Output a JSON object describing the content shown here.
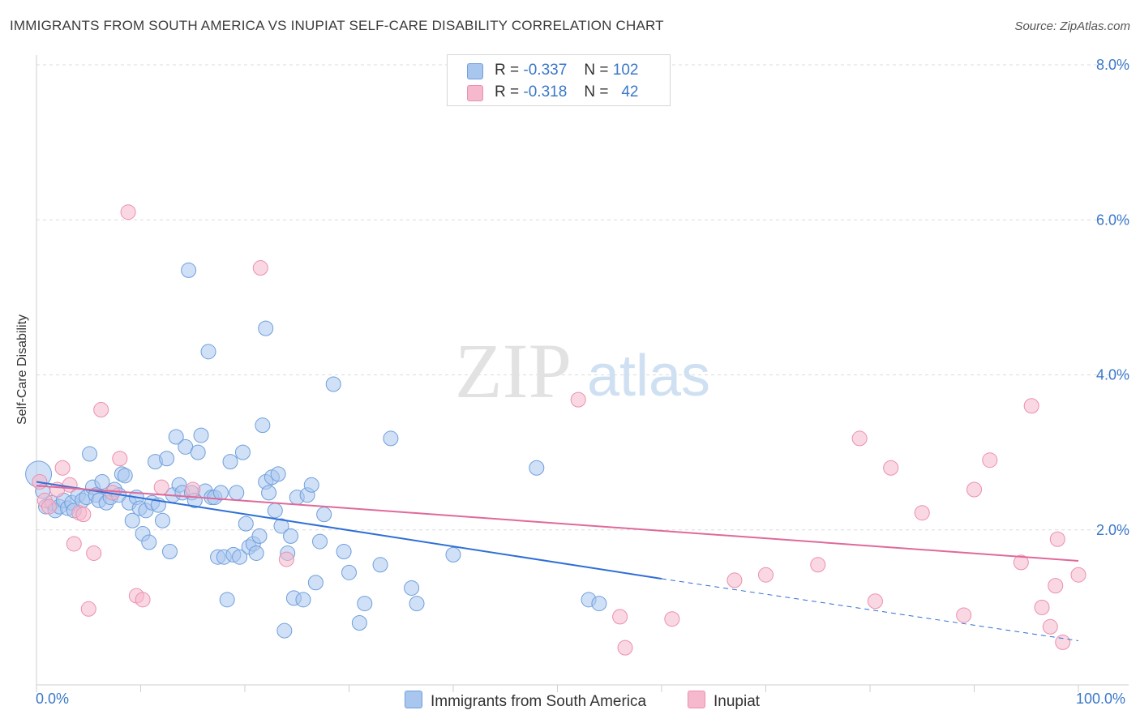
{
  "title": "IMMIGRANTS FROM SOUTH AMERICA VS INUPIAT SELF-CARE DISABILITY CORRELATION CHART",
  "source": "Source: ZipAtlas.com",
  "watermark": {
    "zip": "ZIP",
    "atlas": "atlas"
  },
  "colors": {
    "blue_fill": "#a9c6ee",
    "blue_stroke": "#6f9fdc",
    "blue_line": "#2f6fd6",
    "pink_fill": "#f5b8cc",
    "pink_stroke": "#ec8fad",
    "pink_line": "#e0699a",
    "axis_text": "#3a78c9",
    "grid": "#dcdcdc"
  },
  "legend": {
    "blue": {
      "r_label": "R =",
      "r_value": "-0.337",
      "n_label": "N =",
      "n_value": "102"
    },
    "pink": {
      "r_label": "R =",
      "r_value": "-0.318",
      "n_label": "N =",
      "n_value": "42"
    }
  },
  "bottom_legend": {
    "blue": "Immigrants from South America",
    "pink": "Inupiat"
  },
  "chart_data": {
    "type": "scatter",
    "title": "IMMIGRANTS FROM SOUTH AMERICA VS INUPIAT SELF-CARE DISABILITY CORRELATION CHART",
    "xlabel": "",
    "ylabel": "Self-Care Disability",
    "xlim": [
      0,
      100
    ],
    "ylim": [
      0,
      8.0
    ],
    "x_tick_labels": [
      "0.0%",
      "100.0%"
    ],
    "y_ticks": [
      2.0,
      4.0,
      6.0,
      8.0
    ],
    "y_tick_labels": [
      "2.0%",
      "4.0%",
      "6.0%",
      "8.0%"
    ],
    "grid": true,
    "series": [
      {
        "name": "Immigrants from South America",
        "color": "#a9c6ee",
        "trend": {
          "x": [
            0,
            60
          ],
          "y": [
            2.62,
            1.37
          ],
          "dashed_to": [
            100,
            0.57
          ]
        },
        "points": [
          [
            0.2,
            2.72
          ],
          [
            0.6,
            2.5
          ],
          [
            0.9,
            2.3
          ],
          [
            1.5,
            2.35
          ],
          [
            1.8,
            2.25
          ],
          [
            2.2,
            2.3
          ],
          [
            2.6,
            2.38
          ],
          [
            3.0,
            2.28
          ],
          [
            3.4,
            2.35
          ],
          [
            3.6,
            2.25
          ],
          [
            4.0,
            2.45
          ],
          [
            4.4,
            2.38
          ],
          [
            4.8,
            2.42
          ],
          [
            5.1,
            2.98
          ],
          [
            5.4,
            2.55
          ],
          [
            5.7,
            2.45
          ],
          [
            6.0,
            2.38
          ],
          [
            6.3,
            2.62
          ],
          [
            6.7,
            2.35
          ],
          [
            7.1,
            2.42
          ],
          [
            7.5,
            2.52
          ],
          [
            7.9,
            2.45
          ],
          [
            8.2,
            2.72
          ],
          [
            8.5,
            2.7
          ],
          [
            8.9,
            2.35
          ],
          [
            9.2,
            2.12
          ],
          [
            9.6,
            2.42
          ],
          [
            9.9,
            2.28
          ],
          [
            10.2,
            1.95
          ],
          [
            10.5,
            2.25
          ],
          [
            10.8,
            1.84
          ],
          [
            11.1,
            2.35
          ],
          [
            11.4,
            2.88
          ],
          [
            11.7,
            2.32
          ],
          [
            12.1,
            2.12
          ],
          [
            12.5,
            2.92
          ],
          [
            12.8,
            1.72
          ],
          [
            13.1,
            2.45
          ],
          [
            13.4,
            3.2
          ],
          [
            13.7,
            2.58
          ],
          [
            14.0,
            2.48
          ],
          [
            14.3,
            3.07
          ],
          [
            14.6,
            5.35
          ],
          [
            14.9,
            2.48
          ],
          [
            15.2,
            2.38
          ],
          [
            15.5,
            3.0
          ],
          [
            15.8,
            3.22
          ],
          [
            16.2,
            2.5
          ],
          [
            16.5,
            4.3
          ],
          [
            16.8,
            2.42
          ],
          [
            17.1,
            2.42
          ],
          [
            17.4,
            1.65
          ],
          [
            17.7,
            2.48
          ],
          [
            18.0,
            1.65
          ],
          [
            18.3,
            1.1
          ],
          [
            18.6,
            2.88
          ],
          [
            18.9,
            1.68
          ],
          [
            19.2,
            2.48
          ],
          [
            19.5,
            1.65
          ],
          [
            19.8,
            3.0
          ],
          [
            20.1,
            2.08
          ],
          [
            20.4,
            1.78
          ],
          [
            20.8,
            1.82
          ],
          [
            21.1,
            1.7
          ],
          [
            21.4,
            1.92
          ],
          [
            21.7,
            3.35
          ],
          [
            22.0,
            2.62
          ],
          [
            22.0,
            4.6
          ],
          [
            22.3,
            2.48
          ],
          [
            22.6,
            2.68
          ],
          [
            22.9,
            2.25
          ],
          [
            23.2,
            2.72
          ],
          [
            23.5,
            2.05
          ],
          [
            23.8,
            0.7
          ],
          [
            24.1,
            1.7
          ],
          [
            24.4,
            1.92
          ],
          [
            24.7,
            1.12
          ],
          [
            25.0,
            2.42
          ],
          [
            25.6,
            1.1
          ],
          [
            26.0,
            2.45
          ],
          [
            26.4,
            2.58
          ],
          [
            26.8,
            1.32
          ],
          [
            27.2,
            1.85
          ],
          [
            27.6,
            2.2
          ],
          [
            28.5,
            3.88
          ],
          [
            29.5,
            1.72
          ],
          [
            30.0,
            1.45
          ],
          [
            31.0,
            0.8
          ],
          [
            31.5,
            1.05
          ],
          [
            33.0,
            1.55
          ],
          [
            34.0,
            3.18
          ],
          [
            36.0,
            1.25
          ],
          [
            36.5,
            1.05
          ],
          [
            40.0,
            1.68
          ],
          [
            48.0,
            2.8
          ],
          [
            53.0,
            1.1
          ],
          [
            54.0,
            1.05
          ]
        ]
      },
      {
        "name": "Inupiat",
        "color": "#f5b8cc",
        "trend": {
          "x": [
            0,
            100
          ],
          "y": [
            2.57,
            1.6
          ]
        },
        "points": [
          [
            0.3,
            2.62
          ],
          [
            0.8,
            2.38
          ],
          [
            1.2,
            2.3
          ],
          [
            2.0,
            2.52
          ],
          [
            2.5,
            2.8
          ],
          [
            3.2,
            2.58
          ],
          [
            3.6,
            1.82
          ],
          [
            4.1,
            2.22
          ],
          [
            4.5,
            2.2
          ],
          [
            5.0,
            0.98
          ],
          [
            5.5,
            1.7
          ],
          [
            6.2,
            3.55
          ],
          [
            7.3,
            2.48
          ],
          [
            8.0,
            2.92
          ],
          [
            8.8,
            6.1
          ],
          [
            9.6,
            1.15
          ],
          [
            10.2,
            1.1
          ],
          [
            12.0,
            2.55
          ],
          [
            15.0,
            2.52
          ],
          [
            21.5,
            5.38
          ],
          [
            24.0,
            1.62
          ],
          [
            52.0,
            3.68
          ],
          [
            56.0,
            0.88
          ],
          [
            56.5,
            0.48
          ],
          [
            61.0,
            0.85
          ],
          [
            67.0,
            1.35
          ],
          [
            70.0,
            1.42
          ],
          [
            75.0,
            1.55
          ],
          [
            79.0,
            3.18
          ],
          [
            80.5,
            1.08
          ],
          [
            82.0,
            2.8
          ],
          [
            85.0,
            2.22
          ],
          [
            89.0,
            0.9
          ],
          [
            90.0,
            2.52
          ],
          [
            91.5,
            2.9
          ],
          [
            94.5,
            1.58
          ],
          [
            95.5,
            3.6
          ],
          [
            96.5,
            1.0
          ],
          [
            97.3,
            0.75
          ],
          [
            97.8,
            1.28
          ],
          [
            98.5,
            0.55
          ],
          [
            100.0,
            1.42
          ],
          [
            98.0,
            1.88
          ]
        ]
      }
    ]
  }
}
